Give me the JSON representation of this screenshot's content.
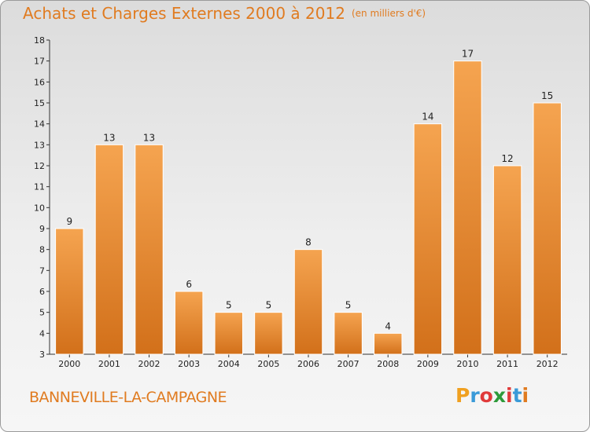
{
  "title": "Achats et Charges Externes 2000 à 2012",
  "unit": "(en milliers d'€)",
  "town": "BANNEVILLE-LA-CAMPAGNE",
  "logo": {
    "letters": [
      "P",
      "r",
      "o",
      "x",
      "i",
      "t",
      "i"
    ],
    "colors": [
      "#f0a020",
      "#3a9ad8",
      "#e03a3a",
      "#2e9a3a",
      "#e03a3a",
      "#3a9ad8",
      "#e07b20"
    ]
  },
  "colors": {
    "accent": "#e07b20",
    "bar_light": "#f5a450",
    "bar_dark": "#d2701a"
  },
  "chart_data": {
    "type": "bar",
    "categories": [
      "2000",
      "2001",
      "2002",
      "2003",
      "2004",
      "2005",
      "2006",
      "2007",
      "2008",
      "2009",
      "2010",
      "2011",
      "2012"
    ],
    "values": [
      9,
      13,
      13,
      6,
      5,
      5,
      8,
      5,
      4,
      14,
      17,
      12,
      15
    ],
    "ylim": [
      3,
      18
    ],
    "yticks": [
      3,
      4,
      5,
      6,
      7,
      8,
      9,
      10,
      11,
      12,
      13,
      14,
      15,
      16,
      17,
      18
    ],
    "grid": false
  }
}
